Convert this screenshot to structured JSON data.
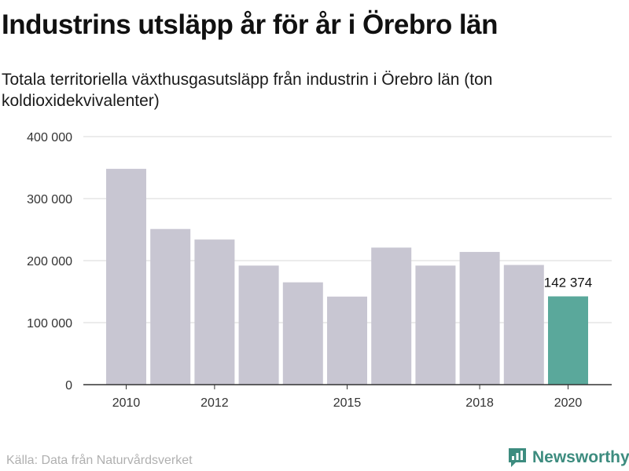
{
  "title": "Industrins utsläpp år för år i Örebro län",
  "subtitle": "Totala territoriella växthusgasutsläpp från industrin i Örebro län (ton koldioxidekvivalenter)",
  "source": "Källa: Data från Naturvårdsverket",
  "brand": {
    "name": "Newsworthy",
    "icon": "newsworthy-logo-icon"
  },
  "colors": {
    "bar": "#c8c6d2",
    "highlight": "#5aa89b",
    "grid": "#d9d9d9",
    "axis": "#333333",
    "text": "#333333"
  },
  "chart_data": {
    "type": "bar",
    "categories": [
      "2010",
      "2011",
      "2012",
      "2013",
      "2014",
      "2015",
      "2016",
      "2017",
      "2018",
      "2019",
      "2020"
    ],
    "values": [
      348000,
      251000,
      234000,
      192000,
      165000,
      142000,
      221000,
      192000,
      214000,
      193000,
      142374
    ],
    "highlight_index": 10,
    "data_labels": [
      {
        "index": 10,
        "text": "142 374"
      }
    ],
    "x_tick_labels": [
      "2010",
      "2012",
      "2015",
      "2018",
      "2020"
    ],
    "y_ticks": [
      0,
      100000,
      200000,
      300000,
      400000
    ],
    "y_tick_labels": [
      "0",
      "100 000",
      "200 000",
      "300 000",
      "400 000"
    ],
    "ylim": [
      0,
      400000
    ],
    "xlabel": "",
    "ylabel": "",
    "grid": true
  }
}
